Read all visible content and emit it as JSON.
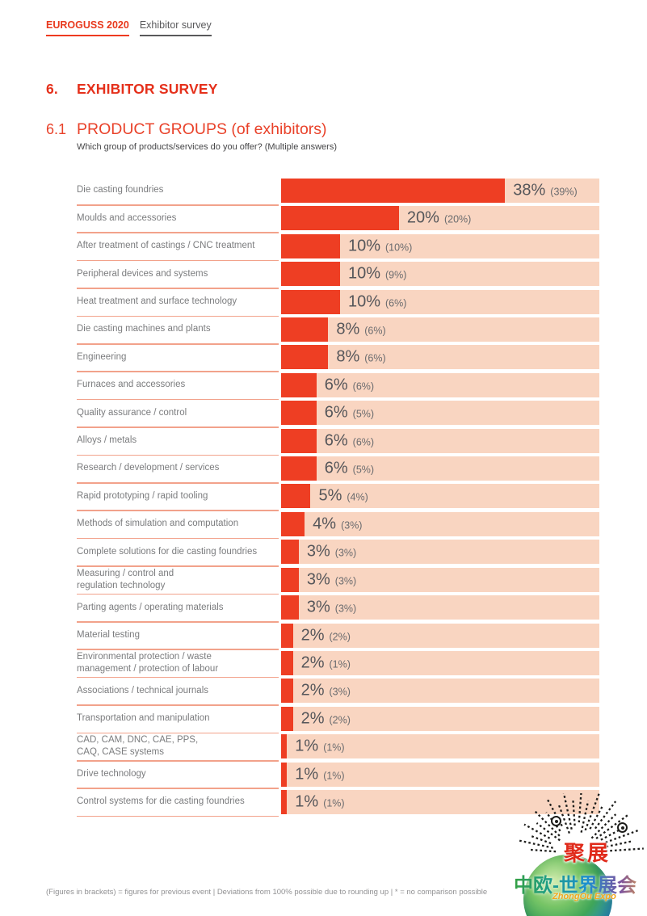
{
  "header": {
    "brand": "EUROGUSS 2020",
    "doc_title": "Exhibitor survey"
  },
  "section": {
    "number": "6.",
    "title": "EXHIBITOR SURVEY"
  },
  "subsection": {
    "number": "6.1",
    "title": "PRODUCT GROUPS (of exhibitors)",
    "question": "Which group of products/services do you offer? (Multiple answers)"
  },
  "chart_data": {
    "type": "bar",
    "orientation": "horizontal",
    "title": "PRODUCT GROUPS (of exhibitors)",
    "value_suffix": "%",
    "xlim": [
      0,
      54
    ],
    "grid": false,
    "legend": "none",
    "bar_color": "#ee3e23",
    "track_color": "#f9d5c1",
    "categories": [
      "Die casting foundries",
      "Moulds and accessories",
      "After treatment of castings / CNC treatment",
      "Peripheral devices and systems",
      "Heat treatment and surface technology",
      "Die casting machines and plants",
      "Engineering",
      "Furnaces and accessories",
      "Quality assurance / control",
      "Alloys / metals",
      "Research / development / services",
      "Rapid prototyping / rapid tooling",
      "Methods of simulation and computation",
      "Complete solutions for die casting foundries",
      "Measuring / control and regulation technology",
      "Parting agents / operating materials",
      "Material testing",
      "Environmental protection / waste management / protection of labour",
      "Associations / technical journals",
      "Transportation and manipulation",
      "CAD, CAM, DNC, CAE, PPS, CAQ, CASE systems",
      "Drive technology",
      "Control systems for die casting foundries"
    ],
    "series": [
      {
        "name": "EUROGUSS 2020",
        "values": [
          38,
          20,
          10,
          10,
          10,
          8,
          8,
          6,
          6,
          6,
          6,
          5,
          4,
          3,
          3,
          3,
          2,
          2,
          2,
          2,
          1,
          1,
          1
        ]
      },
      {
        "name": "previous event",
        "values": [
          39,
          20,
          10,
          9,
          6,
          6,
          6,
          6,
          5,
          6,
          5,
          4,
          3,
          3,
          3,
          3,
          2,
          1,
          3,
          2,
          1,
          1,
          1
        ]
      }
    ]
  },
  "ui": {
    "row_label_lines": [
      [
        "Die casting foundries"
      ],
      [
        "Moulds and accessories"
      ],
      [
        "After treatment of castings / CNC treatment"
      ],
      [
        "Peripheral devices and systems"
      ],
      [
        "Heat treatment and surface technology"
      ],
      [
        "Die casting machines and plants"
      ],
      [
        "Engineering"
      ],
      [
        "Furnaces and accessories"
      ],
      [
        "Quality assurance / control"
      ],
      [
        "Alloys / metals"
      ],
      [
        "Research / development / services"
      ],
      [
        "Rapid prototyping / rapid tooling"
      ],
      [
        "Methods of simulation and computation"
      ],
      [
        "Complete solutions for die casting foundries"
      ],
      [
        "Measuring / control and",
        "regulation technology"
      ],
      [
        "Parting agents / operating materials"
      ],
      [
        "Material testing"
      ],
      [
        "Environmental protection / waste",
        "management / protection of labour"
      ],
      [
        "Associations / technical journals"
      ],
      [
        "Transportation and manipulation"
      ],
      [
        "CAD, CAM, DNC, CAE, PPS,",
        "CAQ, CASE systems"
      ],
      [
        "Drive technology"
      ],
      [
        "Control systems for die casting foundries"
      ]
    ]
  },
  "footer": {
    "note": "(Figures in brackets) = figures for previous event | Deviations from 100% possible due to rounding up | * = no comparison possible"
  },
  "watermark": {
    "badge": "聚展",
    "title": "中欧-世界展会",
    "subtitle": "ZhongOu Expo"
  },
  "theme": {
    "accent_red": "#ee3e23",
    "heading_red": "#e5301b",
    "track_peach": "#f9d5c1",
    "separator_salmon": "#f2a28b",
    "value_gray": "#55565a",
    "label_gray": "#7b7c7e",
    "footer_gray": "#919193"
  }
}
